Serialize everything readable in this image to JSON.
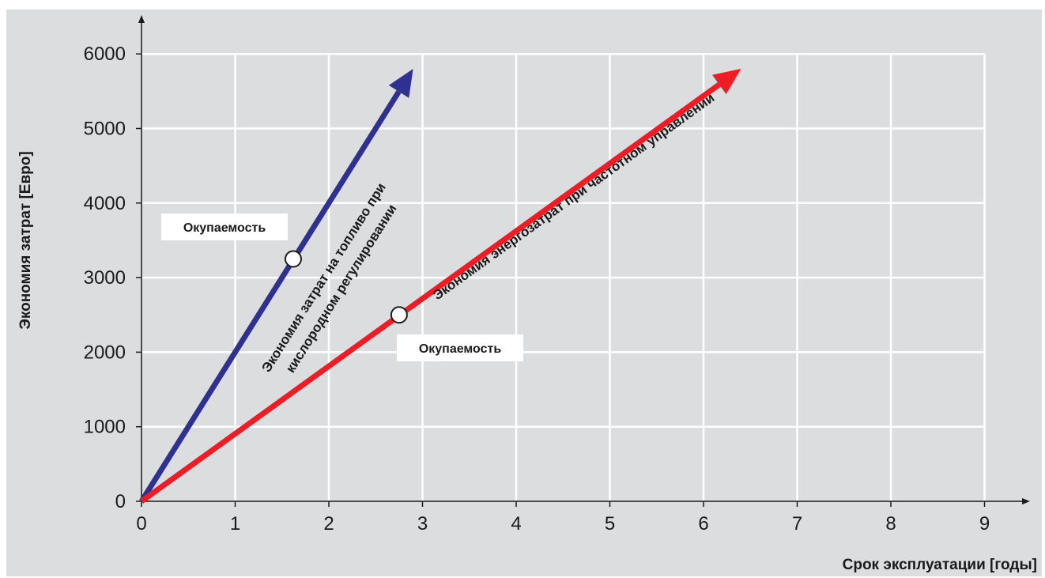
{
  "chart_data": {
    "type": "line",
    "xlabel": "Срок эксплуатации [годы]",
    "ylabel": "Экономия затрат [Евро]",
    "xlim": [
      0,
      9
    ],
    "ylim": [
      0,
      6000
    ],
    "x_ticks": [
      0,
      1,
      2,
      3,
      4,
      5,
      6,
      7,
      8,
      9
    ],
    "y_ticks": [
      0,
      1000,
      2000,
      3000,
      4000,
      5000,
      6000
    ],
    "grid": true,
    "colors": {
      "background": "#dcdddf",
      "grid": "#ffffff",
      "blue": "#2e3192",
      "red": "#ee1c25",
      "axis": "#1a1a1a"
    },
    "series": [
      {
        "label_lines": [
          "Экономия затрат на топливо при",
          "кислородном регулировании"
        ],
        "color": "#2e3192",
        "x": [
          0,
          2.9
        ],
        "y": [
          0,
          5800
        ],
        "marker": {
          "x": 1.62,
          "y": 3250,
          "label": "Окупаемость"
        }
      },
      {
        "label_lines": [
          "Экономия энергозатрат при частотном управлении"
        ],
        "color": "#ee1c25",
        "x": [
          0,
          6.4
        ],
        "y": [
          0,
          5800
        ],
        "marker": {
          "x": 2.75,
          "y": 2500,
          "label": "Окупаемость"
        }
      }
    ]
  }
}
